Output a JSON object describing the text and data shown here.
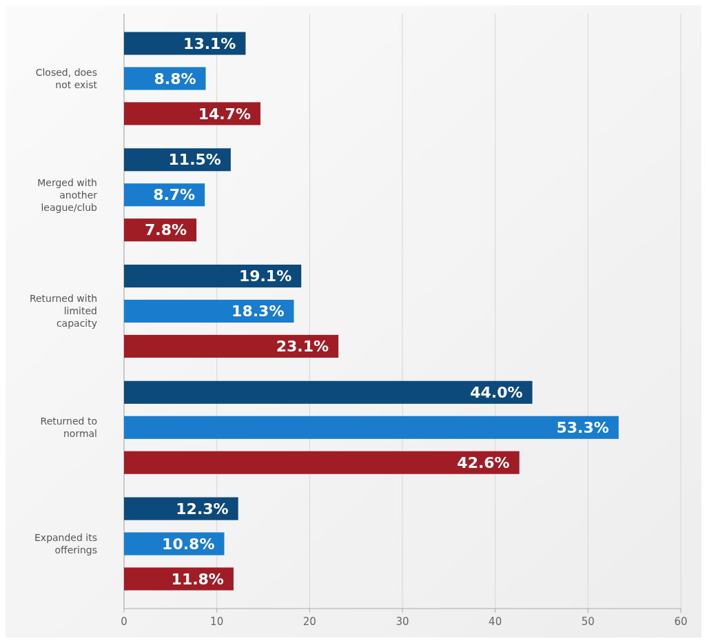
{
  "chart_data": {
    "type": "bar",
    "orientation": "horizontal",
    "categories": [
      "Closed, does not exist",
      "Merged with another league/club",
      "Returned with limited capacity",
      "Returned to normal",
      "Expanded its offerings"
    ],
    "series": [
      {
        "color": "#0d4a7c",
        "values": [
          13.1,
          11.5,
          19.1,
          44.0,
          12.3
        ],
        "value_labels": [
          "13.1%",
          "11.5%",
          "19.1%",
          "44.0%",
          "12.3%"
        ]
      },
      {
        "color": "#1a7ccc",
        "values": [
          8.8,
          8.7,
          18.3,
          53.3,
          10.8
        ],
        "value_labels": [
          "8.8%",
          "8.7%",
          "18.3%",
          "53.3%",
          "10.8%"
        ]
      },
      {
        "color": "#a11d25",
        "values": [
          14.7,
          7.8,
          23.1,
          42.6,
          11.8
        ],
        "value_labels": [
          "14.7%",
          "7.8%",
          "23.1%",
          "42.6%",
          "11.8%"
        ]
      }
    ],
    "xlim": [
      0,
      60
    ],
    "xticks": [
      0,
      10,
      20,
      30,
      40,
      50,
      60
    ],
    "grid": "x"
  }
}
